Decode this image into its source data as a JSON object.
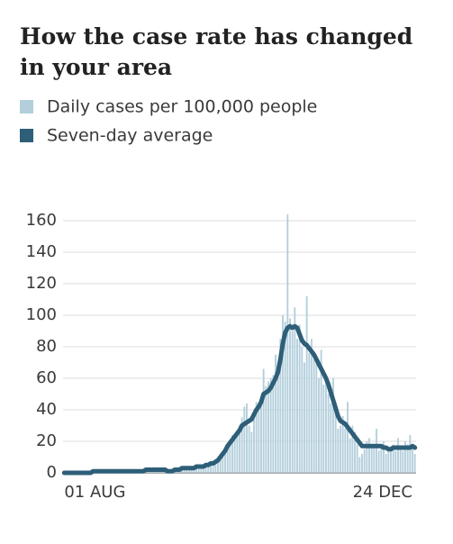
{
  "chart_data": {
    "type": "bar-line",
    "title": "How the case rate has changed in your area",
    "categories": [
      "01 AUG",
      null,
      null,
      null,
      null,
      null,
      null,
      null,
      null,
      null,
      null,
      null,
      null,
      null,
      null,
      null,
      null,
      null,
      null,
      null,
      null,
      null,
      null,
      null,
      null,
      null,
      null,
      null,
      null,
      null,
      null,
      null,
      null,
      null,
      null,
      null,
      null,
      null,
      null,
      null,
      null,
      null,
      null,
      null,
      null,
      null,
      null,
      null,
      null,
      null,
      null,
      null,
      null,
      null,
      null,
      null,
      null,
      null,
      null,
      null,
      null,
      null,
      null,
      null,
      null,
      null,
      null,
      null,
      null,
      null,
      null,
      null,
      null,
      null,
      null,
      null,
      null,
      null,
      null,
      null,
      null,
      null,
      null,
      null,
      null,
      null,
      null,
      null,
      null,
      null,
      null,
      null,
      null,
      null,
      null,
      null,
      null,
      null,
      null,
      null,
      null,
      null,
      null,
      null,
      null,
      null,
      null,
      null,
      null,
      null,
      null,
      null,
      null,
      null,
      null,
      null,
      null,
      null,
      null,
      null,
      null,
      null,
      null,
      null,
      null,
      null,
      null,
      null,
      null,
      null,
      null,
      null,
      null,
      null,
      null,
      null,
      null,
      null,
      null,
      null,
      null,
      null,
      null,
      null,
      null,
      "24 DEC",
      null
    ],
    "series": [
      {
        "name": "Daily cases per 100,000 people",
        "color": "#b3cfdc",
        "kind": "bar",
        "values": [
          0,
          1,
          0,
          0,
          1,
          0,
          0,
          1,
          0,
          0,
          1,
          0,
          1,
          2,
          1,
          0,
          1,
          2,
          1,
          1,
          1,
          0,
          2,
          1,
          1,
          2,
          1,
          0,
          1,
          2,
          1,
          1,
          2,
          1,
          2,
          3,
          2,
          1,
          2,
          3,
          2,
          3,
          1,
          1,
          2,
          1,
          2,
          3,
          2,
          3,
          4,
          3,
          2,
          4,
          3,
          5,
          4,
          3,
          5,
          6,
          5,
          7,
          6,
          8,
          9,
          12,
          13,
          16,
          18,
          20,
          24,
          22,
          27,
          30,
          35,
          42,
          44,
          30,
          26,
          38,
          45,
          40,
          48,
          66,
          55,
          58,
          60,
          62,
          75,
          70,
          85,
          100,
          96,
          164,
          98,
          90,
          105,
          85,
          94,
          80,
          70,
          112,
          76,
          85,
          72,
          74,
          60,
          78,
          56,
          62,
          50,
          44,
          60,
          40,
          28,
          30,
          36,
          28,
          45,
          22,
          30,
          26,
          18,
          10,
          12,
          15,
          20,
          22,
          18,
          16,
          28,
          14,
          18,
          20,
          12,
          16,
          15,
          18,
          14,
          22,
          17,
          14,
          20,
          18,
          24,
          16,
          12
        ]
      },
      {
        "name": "Seven-day average",
        "color": "#2e5e78",
        "kind": "line",
        "values": [
          0,
          0,
          0,
          0,
          0,
          0,
          0,
          0,
          0,
          0,
          0,
          0,
          1,
          1,
          1,
          1,
          1,
          1,
          1,
          1,
          1,
          1,
          1,
          1,
          1,
          1,
          1,
          1,
          1,
          1,
          1,
          1,
          1,
          1,
          2,
          2,
          2,
          2,
          2,
          2,
          2,
          2,
          2,
          1,
          1,
          1,
          2,
          2,
          2,
          3,
          3,
          3,
          3,
          3,
          3,
          4,
          4,
          4,
          4,
          5,
          5,
          6,
          6,
          7,
          8,
          10,
          12,
          14,
          17,
          19,
          21,
          23,
          25,
          27,
          30,
          31,
          32,
          33,
          34,
          37,
          40,
          42,
          45,
          50,
          51,
          52,
          54,
          57,
          60,
          64,
          72,
          82,
          89,
          92,
          93,
          92,
          93,
          92,
          88,
          84,
          82,
          81,
          79,
          77,
          75,
          72,
          69,
          66,
          63,
          60,
          56,
          51,
          46,
          41,
          36,
          33,
          32,
          31,
          29,
          27,
          25,
          23,
          21,
          19,
          17,
          17,
          17,
          17,
          17,
          17,
          17,
          17,
          17,
          16,
          16,
          15,
          15,
          16,
          16,
          16,
          16,
          16,
          16,
          16,
          16,
          17,
          16
        ]
      }
    ],
    "ylim": [
      0,
      160
    ],
    "yticks": [
      0,
      20,
      40,
      60,
      80,
      100,
      120,
      140,
      160
    ],
    "grid": true
  }
}
